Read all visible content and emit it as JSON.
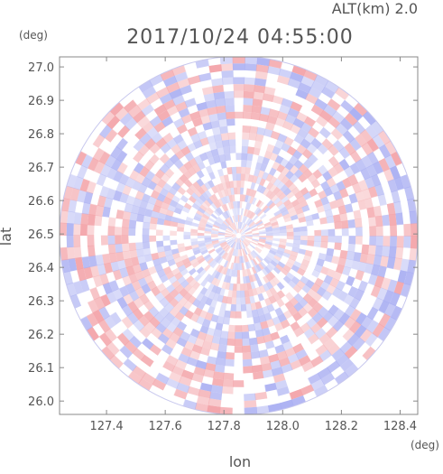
{
  "chart_data": {
    "type": "heatmap",
    "title": "2017/10/24 04:55:00",
    "altitude_label": "ALT(km) 2.0",
    "xlabel": "lon",
    "ylabel": "lat",
    "xunit": "(deg)",
    "yunit": "(deg)",
    "xlim": [
      127.24,
      128.46
    ],
    "ylim": [
      25.96,
      27.03
    ],
    "xticks": [
      "127.4",
      "127.6",
      "127.8",
      "128.0",
      "128.2",
      "128.4"
    ],
    "yticks": [
      "26.0",
      "26.1",
      "26.2",
      "26.3",
      "26.4",
      "26.5",
      "26.6",
      "26.7",
      "26.8",
      "26.9",
      "27.0"
    ],
    "radar_center": [
      127.85,
      26.495
    ],
    "radar_range_deg_lon": 0.61,
    "field": "radial-banded red/blue anomaly pattern",
    "colors": {
      "positive": "#f3a3a8",
      "negative": "#a9aef2",
      "neutral": "#ffffff",
      "axes": "#888888",
      "text": "#555555"
    }
  }
}
